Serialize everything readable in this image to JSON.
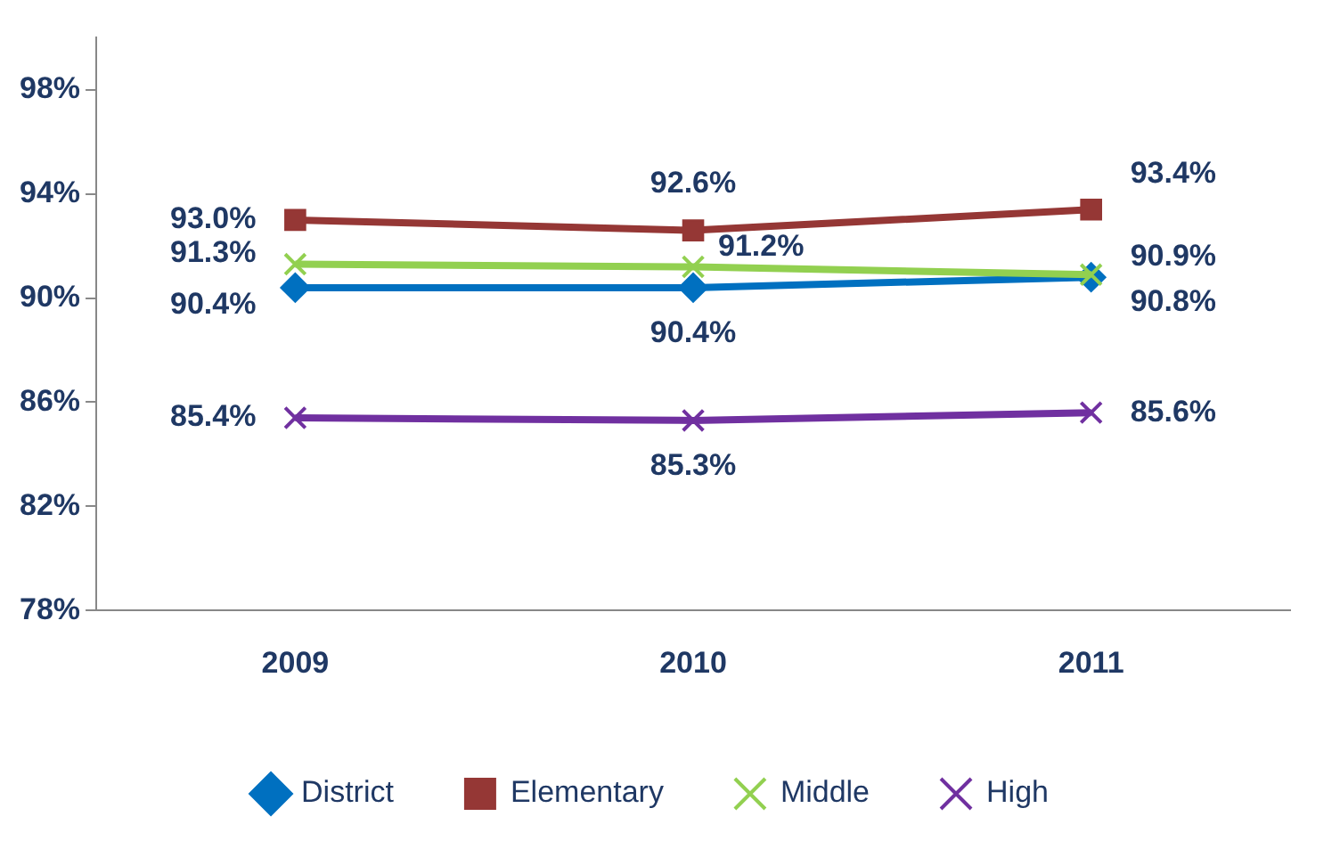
{
  "chart_data": {
    "type": "line",
    "categories": [
      "2009",
      "2010",
      "2011"
    ],
    "series": [
      {
        "name": "District",
        "color": "#0070c0",
        "marker": "diamond",
        "values": [
          90.4,
          90.4,
          90.8
        ]
      },
      {
        "name": "Elementary",
        "color": "#953735",
        "marker": "square",
        "values": [
          93.0,
          92.6,
          93.4
        ]
      },
      {
        "name": "Middle",
        "color": "#92d050",
        "marker": "cross",
        "values": [
          91.3,
          91.2,
          90.9
        ]
      },
      {
        "name": "High",
        "color": "#7030a0",
        "marker": "cross",
        "values": [
          85.4,
          85.3,
          85.6
        ]
      }
    ],
    "ylim": [
      78,
      100
    ],
    "yticks": [
      {
        "value": 78,
        "label": "78%"
      },
      {
        "value": 82,
        "label": "82%"
      },
      {
        "value": 86,
        "label": "86%"
      },
      {
        "value": 90,
        "label": "90%"
      },
      {
        "value": 94,
        "label": "94%"
      },
      {
        "value": 98,
        "label": "98%"
      }
    ],
    "value_labels": [
      [
        "90.4%",
        "90.4%",
        "90.8%"
      ],
      [
        "93.0%",
        "92.6%",
        "93.4%"
      ],
      [
        "91.3%",
        "91.2%",
        "90.9%"
      ],
      [
        "85.4%",
        "85.3%",
        "85.6%"
      ]
    ],
    "grid": false,
    "legend": "bottom",
    "line_style": "solid"
  }
}
